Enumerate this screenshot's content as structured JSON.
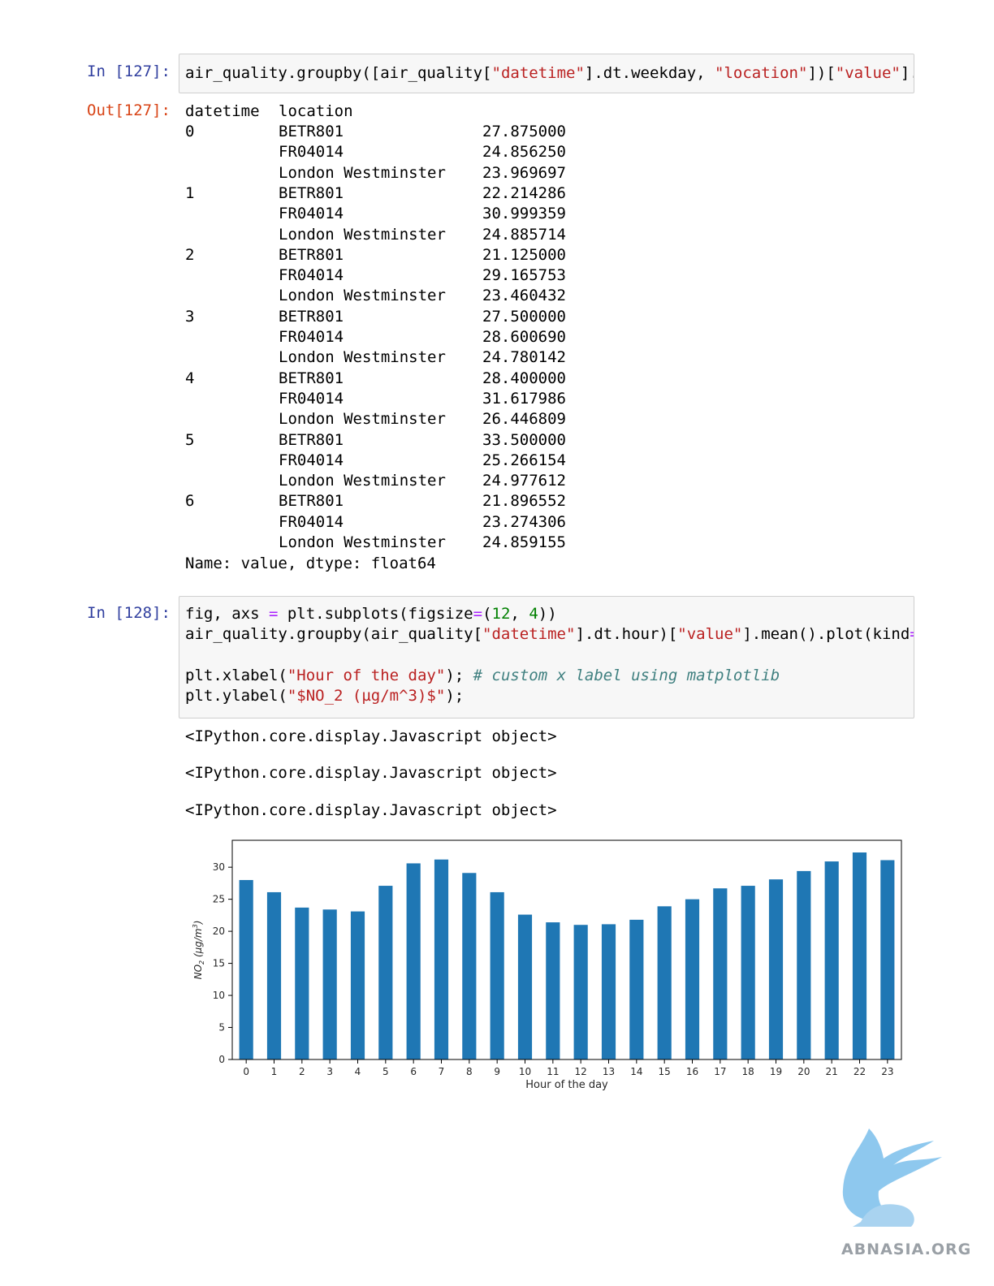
{
  "cell127": {
    "in_prompt": "In [127]:",
    "out_prompt": "Out[127]:",
    "code_parts": [
      "air_quality.groupby([air_quality[",
      "\"datetime\"",
      "].dt.weekday, ",
      "\"location\"",
      "])[",
      "\"value\"",
      "]."
    ],
    "output": {
      "header": [
        "datetime",
        "location"
      ],
      "rows": [
        [
          "0",
          "BETR801",
          "27.875000"
        ],
        [
          "",
          "FR04014",
          "24.856250"
        ],
        [
          "",
          "London Westminster",
          "23.969697"
        ],
        [
          "1",
          "BETR801",
          "22.214286"
        ],
        [
          "",
          "FR04014",
          "30.999359"
        ],
        [
          "",
          "London Westminster",
          "24.885714"
        ],
        [
          "2",
          "BETR801",
          "21.125000"
        ],
        [
          "",
          "FR04014",
          "29.165753"
        ],
        [
          "",
          "London Westminster",
          "23.460432"
        ],
        [
          "3",
          "BETR801",
          "27.500000"
        ],
        [
          "",
          "FR04014",
          "28.600690"
        ],
        [
          "",
          "London Westminster",
          "24.780142"
        ],
        [
          "4",
          "BETR801",
          "28.400000"
        ],
        [
          "",
          "FR04014",
          "31.617986"
        ],
        [
          "",
          "London Westminster",
          "26.446809"
        ],
        [
          "5",
          "BETR801",
          "33.500000"
        ],
        [
          "",
          "FR04014",
          "25.266154"
        ],
        [
          "",
          "London Westminster",
          "24.977612"
        ],
        [
          "6",
          "BETR801",
          "21.896552"
        ],
        [
          "",
          "FR04014",
          "23.274306"
        ],
        [
          "",
          "London Westminster",
          "24.859155"
        ]
      ],
      "footer": "Name: value, dtype: float64"
    }
  },
  "cell128": {
    "in_prompt": "In [128]:",
    "line1_parts": [
      "fig, axs ",
      "=",
      " plt.subplots(figsize",
      "=",
      "(",
      "12",
      ", ",
      "4",
      "))"
    ],
    "line2_parts": [
      "air_quality.groupby(air_quality[",
      "\"datetime\"",
      "].dt.hour)[",
      "\"value\"",
      "].mean().plot(kind",
      "="
    ],
    "line3_parts": [
      "plt.xlabel(",
      "\"Hour of the day\"",
      "); ",
      "# custom x label using matplotlib"
    ],
    "line4_parts": [
      "plt.ylabel(",
      "\"$NO_2 (µg/m^3)$\"",
      ");"
    ],
    "outputs": [
      "<IPython.core.display.Javascript object>",
      "<IPython.core.display.Javascript object>",
      "<IPython.core.display.Javascript object>"
    ]
  },
  "chart_data": {
    "type": "bar",
    "categories": [
      "0",
      "1",
      "2",
      "3",
      "4",
      "5",
      "6",
      "7",
      "8",
      "9",
      "10",
      "11",
      "12",
      "13",
      "14",
      "15",
      "16",
      "17",
      "18",
      "19",
      "20",
      "21",
      "22",
      "23"
    ],
    "values": [
      28.0,
      26.1,
      23.7,
      23.4,
      23.1,
      27.1,
      30.6,
      31.2,
      29.1,
      26.1,
      22.6,
      21.4,
      21.0,
      21.1,
      21.8,
      23.9,
      25.0,
      26.7,
      27.1,
      28.1,
      29.4,
      30.9,
      32.3,
      31.1
    ],
    "xlabel": "Hour of the day",
    "ylabel_main": "NO",
    "ylabel_sub": "2",
    "ylabel_rest": " (µg/m",
    "ylabel_sup": "3",
    "ylabel_end": ")",
    "yticks": [
      0,
      5,
      10,
      15,
      20,
      25,
      30
    ],
    "ylim": [
      0,
      34.2
    ],
    "bar_color": "#1f77b4",
    "grid": false
  },
  "watermark": {
    "text": "ABNASIA.ORG"
  }
}
